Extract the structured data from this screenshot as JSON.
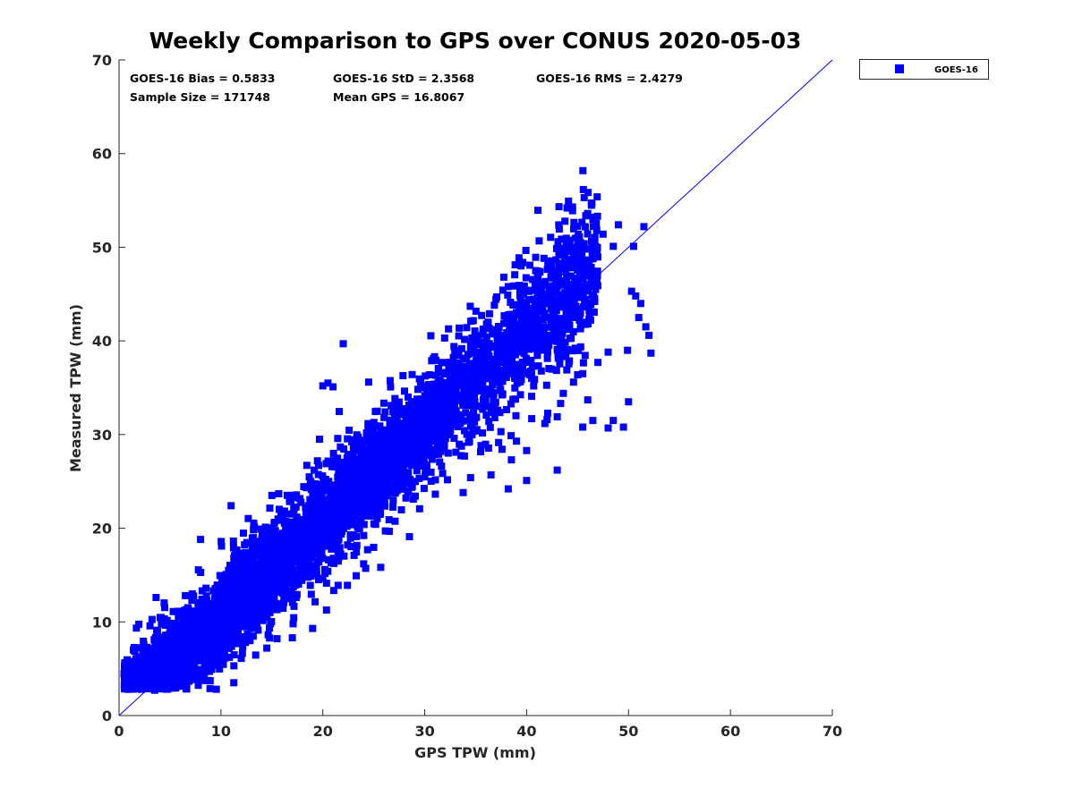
{
  "colors": {
    "series": "#0000ff",
    "axis": "#262626",
    "identity_line": "#0000ff"
  },
  "chart_data": {
    "type": "scatter",
    "title": "Weekly Comparison to GPS over CONUS 2020-05-03",
    "xlabel": "GPS TPW (mm)",
    "ylabel": "Measured TPW (mm)",
    "xlim": [
      0,
      70
    ],
    "ylim": [
      0,
      70
    ],
    "xticks": [
      "0",
      "10",
      "20",
      "30",
      "40",
      "50",
      "60",
      "70"
    ],
    "yticks": [
      "0",
      "10",
      "20",
      "30",
      "40",
      "50",
      "60",
      "70"
    ],
    "grid": false,
    "legend_position": "outside-top-right",
    "reference_line": {
      "type": "identity",
      "from": [
        0,
        0
      ],
      "to": [
        70,
        70
      ]
    },
    "stats": [
      {
        "id": "bias",
        "text": "GOES-16 Bias = 0.5833"
      },
      {
        "id": "std",
        "text": "GOES-16 StD = 2.3568"
      },
      {
        "id": "rms",
        "text": "GOES-16 RMS = 2.4279"
      },
      {
        "id": "sample",
        "text": "Sample Size = 171748"
      },
      {
        "id": "mean",
        "text": "Mean GPS = 16.8067"
      }
    ],
    "series": [
      {
        "name": "GOES-16",
        "marker": "square",
        "color": "#0000ff",
        "cloud_model": {
          "x_range": [
            0.5,
            47
          ],
          "intercept": 0.3,
          "slope": 1.02,
          "spread": 2.4,
          "sample_count": 171748
        },
        "outliers": [
          [
            44.5,
            54.3
          ],
          [
            44.5,
            53.9
          ],
          [
            46.0,
            53.6
          ],
          [
            49.0,
            52.4
          ],
          [
            51.5,
            52.2
          ],
          [
            47.5,
            51.4
          ],
          [
            48.5,
            50.1
          ],
          [
            50.5,
            50.1
          ],
          [
            22.0,
            39.7
          ],
          [
            24.5,
            35.6
          ],
          [
            20.5,
            35.5
          ],
          [
            20.0,
            35.2
          ],
          [
            21.0,
            35.1
          ],
          [
            50.3,
            45.3
          ],
          [
            50.7,
            44.8
          ],
          [
            51.2,
            44.0
          ],
          [
            51.0,
            42.5
          ],
          [
            51.7,
            41.5
          ],
          [
            52.0,
            40.6
          ],
          [
            52.2,
            38.7
          ],
          [
            49.9,
            39.0
          ],
          [
            48.0,
            38.8
          ],
          [
            47.0,
            37.7
          ],
          [
            45.5,
            36.5
          ],
          [
            44.6,
            35.6
          ],
          [
            43.6,
            34.4
          ],
          [
            46.0,
            33.7
          ],
          [
            50.0,
            33.5
          ],
          [
            48.5,
            31.5
          ],
          [
            46.5,
            31.5
          ],
          [
            43.0,
            31.9
          ],
          [
            42.0,
            31.6
          ],
          [
            40.5,
            31.7
          ],
          [
            45.5,
            30.8
          ],
          [
            48.0,
            30.7
          ],
          [
            49.5,
            30.8
          ],
          [
            39.0,
            29.3
          ],
          [
            40.0,
            28.3
          ],
          [
            38.5,
            27.3
          ],
          [
            43.0,
            26.2
          ],
          [
            40.0,
            25.1
          ],
          [
            38.2,
            24.2
          ],
          [
            36.5,
            25.7
          ],
          [
            34.5,
            25.4
          ],
          [
            15.0,
            23.5
          ],
          [
            11.0,
            22.4
          ],
          [
            8.0,
            18.8
          ],
          [
            28.5,
            19.1
          ],
          [
            26.5,
            20.9
          ],
          [
            19.0,
            9.3
          ],
          [
            17.0,
            8.3
          ],
          [
            15.5,
            8.2
          ],
          [
            3.5,
            2.7
          ],
          [
            0.5,
            4.4
          ],
          [
            4.0,
            3.5
          ],
          [
            12.0,
            6.1
          ],
          [
            14.5,
            7.2
          ],
          [
            21.5,
            13.9
          ],
          [
            24.0,
            16.2
          ],
          [
            37.0,
            32.5
          ]
        ]
      }
    ]
  }
}
